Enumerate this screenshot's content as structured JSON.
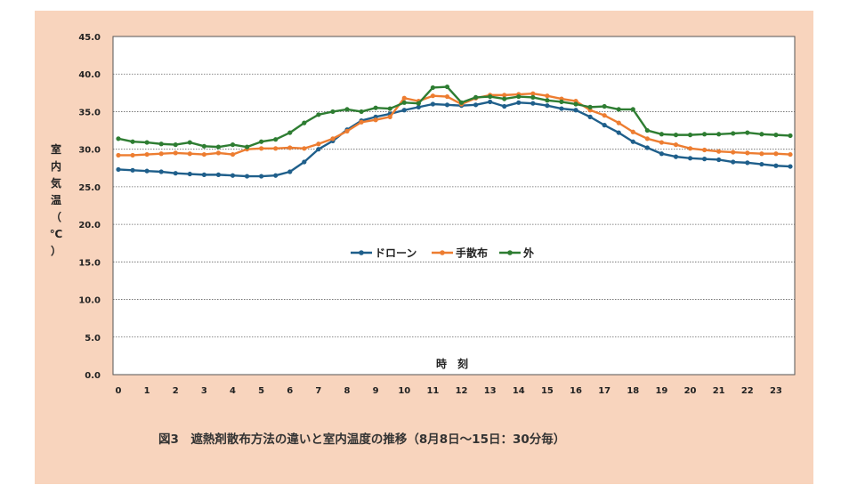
{
  "caption": "図3　遮熱剤散布方法の違いと室内温度の推移（8月8日～15日：30分毎）",
  "chart_data": {
    "type": "line",
    "title": "",
    "xlabel": "時　刻",
    "ylabel": "室内気温（℃）",
    "ylim": [
      0,
      45
    ],
    "yticks": [
      "0.0",
      "5.0",
      "10.0",
      "15.0",
      "20.0",
      "25.0",
      "30.0",
      "35.0",
      "40.0",
      "45.0"
    ],
    "xticks": [
      "0",
      "1",
      "2",
      "3",
      "4",
      "5",
      "6",
      "7",
      "8",
      "9",
      "10",
      "11",
      "12",
      "13",
      "14",
      "15",
      "16",
      "17",
      "18",
      "19",
      "20",
      "21",
      "22",
      "23"
    ],
    "x": [
      0,
      0.5,
      1,
      1.5,
      2,
      2.5,
      3,
      3.5,
      4,
      4.5,
      5,
      5.5,
      6,
      6.5,
      7,
      7.5,
      8,
      8.5,
      9,
      9.5,
      10,
      10.5,
      11,
      11.5,
      12,
      12.5,
      13,
      13.5,
      14,
      14.5,
      15,
      15.5,
      16,
      16.5,
      17,
      17.5,
      18,
      18.5,
      19,
      19.5,
      20,
      20.5,
      21,
      21.5,
      22,
      22.5,
      23,
      23.5
    ],
    "grid": true,
    "legend_position": "center",
    "series": [
      {
        "name": "ドローン",
        "color": "#1f5f8b",
        "values": [
          27.3,
          27.2,
          27.1,
          27.0,
          26.8,
          26.7,
          26.6,
          26.6,
          26.5,
          26.4,
          26.4,
          26.5,
          27.0,
          28.3,
          30.0,
          31.1,
          32.6,
          33.8,
          34.3,
          34.7,
          35.2,
          35.6,
          36.0,
          35.9,
          35.8,
          35.9,
          36.3,
          35.7,
          36.2,
          36.1,
          35.8,
          35.4,
          35.2,
          34.3,
          33.2,
          32.2,
          31.0,
          30.2,
          29.4,
          29.0,
          28.8,
          28.7,
          28.6,
          28.3,
          28.2,
          28.0,
          27.8,
          27.7
        ]
      },
      {
        "name": "手散布",
        "color": "#ed7d31",
        "values": [
          29.2,
          29.2,
          29.3,
          29.4,
          29.5,
          29.4,
          29.3,
          29.5,
          29.3,
          30.0,
          30.1,
          30.1,
          30.2,
          30.1,
          30.7,
          31.4,
          32.4,
          33.6,
          33.9,
          34.3,
          36.8,
          36.4,
          37.1,
          37.0,
          36.0,
          36.8,
          37.2,
          37.2,
          37.3,
          37.4,
          37.1,
          36.7,
          36.4,
          35.2,
          34.5,
          33.5,
          32.3,
          31.4,
          30.9,
          30.6,
          30.1,
          29.9,
          29.7,
          29.6,
          29.5,
          29.4,
          29.4,
          29.3
        ]
      },
      {
        "name": "外",
        "color": "#2e7d32",
        "values": [
          31.4,
          31.0,
          30.9,
          30.7,
          30.6,
          30.9,
          30.4,
          30.3,
          30.6,
          30.3,
          31.0,
          31.3,
          32.2,
          33.5,
          34.6,
          35.0,
          35.3,
          35.0,
          35.5,
          35.4,
          36.2,
          36.1,
          38.2,
          38.3,
          36.2,
          36.9,
          37.0,
          36.7,
          37.0,
          36.9,
          36.5,
          36.3,
          36.0,
          35.6,
          35.7,
          35.3,
          35.3,
          32.5,
          32.0,
          31.9,
          31.9,
          32.0,
          32.0,
          32.1,
          32.2,
          32.0,
          31.9,
          31.8
        ]
      }
    ]
  }
}
